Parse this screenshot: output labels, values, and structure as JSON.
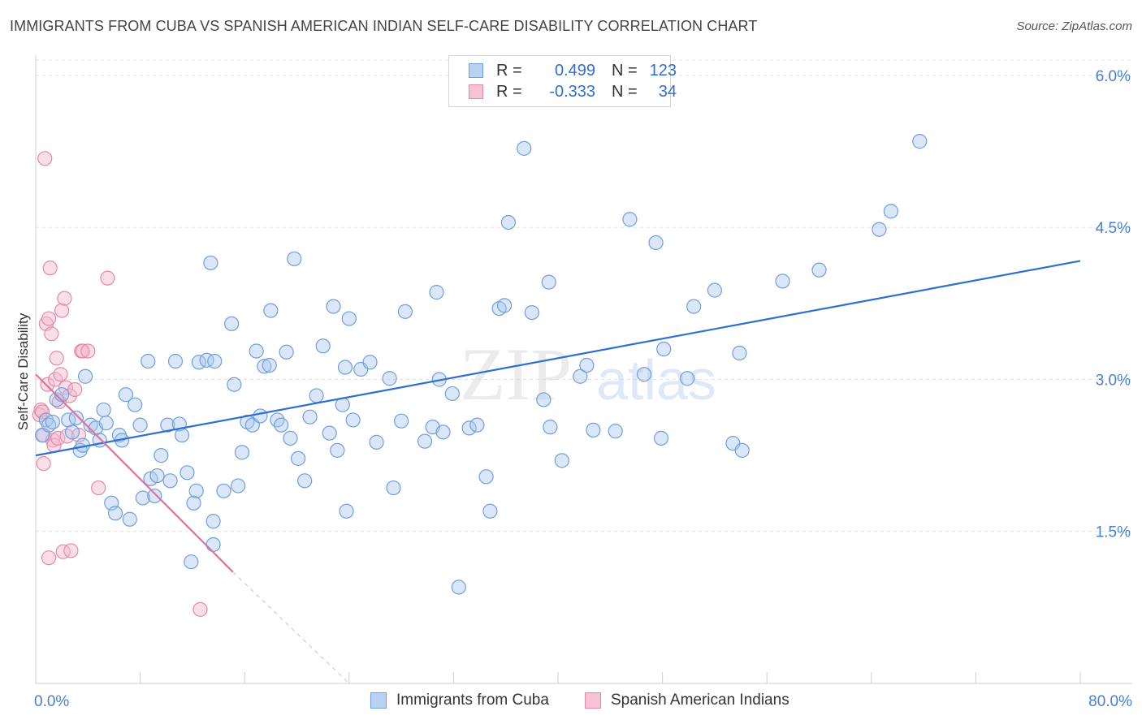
{
  "title": "IMMIGRANTS FROM CUBA VS SPANISH AMERICAN INDIAN SELF-CARE DISABILITY CORRELATION CHART",
  "source": "Source: ZipAtlas.com",
  "colors": {
    "blue": "#6f9fdc",
    "blue_fill": "#a9c6ee",
    "blue_line": "#2f6fd0",
    "pink": "#e48aa8",
    "pink_fill": "#f4b8cb",
    "pink_line": "#e0719a",
    "tick_text": "#4a7fd0"
  },
  "legend": {
    "rows": [
      {
        "r_label": "R =",
        "r_value": "0.499",
        "n_label": "N =",
        "n_value": "123"
      },
      {
        "r_label": "R =",
        "r_value": "-0.333",
        "n_label": "N =",
        "n_value": "34"
      }
    ]
  },
  "bottom_legend": [
    "Immigrants from Cuba",
    "Spanish American Indians"
  ],
  "watermark": {
    "zip": "ZIP",
    "atlas": "atlas"
  },
  "chart_data": {
    "type": "scatter",
    "ylabel": "Self-Care Disability",
    "xlim": [
      0,
      80
    ],
    "ylim": [
      0,
      6.2
    ],
    "x_ticks": [
      "0.0%",
      "80.0%"
    ],
    "y_ticks": [
      {
        "value": 1.5,
        "label": "1.5%"
      },
      {
        "value": 3.0,
        "label": "3.0%"
      },
      {
        "value": 4.5,
        "label": "4.5%"
      },
      {
        "value": 6.0,
        "label": "6.0%"
      }
    ],
    "series": [
      {
        "name": "Immigrants from Cuba",
        "trend": {
          "x0": 0,
          "y0": 2.25,
          "x1": 80,
          "y1": 4.17
        },
        "points": [
          [
            0.5,
            2.45
          ],
          [
            0.8,
            2.6
          ],
          [
            1.0,
            2.55
          ],
          [
            1.3,
            2.58
          ],
          [
            1.6,
            2.8
          ],
          [
            2.0,
            2.85
          ],
          [
            2.5,
            2.6
          ],
          [
            2.8,
            2.48
          ],
          [
            3.1,
            2.62
          ],
          [
            3.4,
            2.3
          ],
          [
            3.6,
            2.35
          ],
          [
            3.8,
            3.03
          ],
          [
            4.2,
            2.55
          ],
          [
            4.6,
            2.52
          ],
          [
            4.9,
            2.4
          ],
          [
            5.2,
            2.7
          ],
          [
            5.4,
            2.57
          ],
          [
            5.8,
            1.78
          ],
          [
            6.1,
            1.68
          ],
          [
            6.4,
            2.45
          ],
          [
            6.6,
            2.4
          ],
          [
            6.9,
            2.85
          ],
          [
            7.2,
            1.62
          ],
          [
            7.6,
            2.75
          ],
          [
            8.0,
            2.55
          ],
          [
            8.2,
            1.83
          ],
          [
            8.6,
            3.18
          ],
          [
            8.8,
            2.02
          ],
          [
            9.1,
            1.85
          ],
          [
            9.3,
            2.05
          ],
          [
            9.6,
            2.25
          ],
          [
            10.1,
            2.55
          ],
          [
            10.3,
            2.0
          ],
          [
            10.7,
            3.18
          ],
          [
            11.0,
            2.56
          ],
          [
            11.2,
            2.45
          ],
          [
            11.6,
            2.08
          ],
          [
            12.1,
            1.78
          ],
          [
            12.3,
            1.9
          ],
          [
            12.5,
            3.17
          ],
          [
            11.9,
            1.2
          ],
          [
            13.1,
            3.19
          ],
          [
            13.4,
            4.15
          ],
          [
            13.6,
            1.6
          ],
          [
            13.6,
            1.37
          ],
          [
            14.4,
            1.9
          ],
          [
            15.0,
            3.55
          ],
          [
            15.2,
            2.95
          ],
          [
            15.5,
            1.95
          ],
          [
            15.8,
            2.28
          ],
          [
            16.2,
            2.58
          ],
          [
            16.6,
            2.55
          ],
          [
            16.9,
            3.28
          ],
          [
            17.2,
            2.64
          ],
          [
            17.5,
            3.13
          ],
          [
            17.9,
            3.14
          ],
          [
            18.0,
            3.68
          ],
          [
            18.5,
            2.6
          ],
          [
            18.8,
            2.55
          ],
          [
            19.2,
            3.27
          ],
          [
            19.5,
            2.42
          ],
          [
            19.8,
            4.19
          ],
          [
            20.1,
            2.22
          ],
          [
            20.6,
            2.0
          ],
          [
            21.0,
            2.63
          ],
          [
            21.5,
            2.84
          ],
          [
            22.0,
            3.33
          ],
          [
            22.5,
            2.47
          ],
          [
            22.8,
            3.72
          ],
          [
            23.1,
            2.3
          ],
          [
            23.5,
            2.75
          ],
          [
            23.8,
            1.7
          ],
          [
            24.0,
            3.6
          ],
          [
            24.3,
            2.6
          ],
          [
            24.9,
            3.1
          ],
          [
            25.6,
            3.17
          ],
          [
            26.1,
            2.38
          ],
          [
            27.1,
            3.01
          ],
          [
            27.4,
            1.93
          ],
          [
            28.0,
            2.59
          ],
          [
            28.3,
            3.67
          ],
          [
            29.8,
            2.39
          ],
          [
            30.4,
            2.53
          ],
          [
            30.7,
            3.86
          ],
          [
            30.9,
            3.0
          ],
          [
            31.2,
            2.48
          ],
          [
            31.9,
            2.86
          ],
          [
            33.2,
            2.52
          ],
          [
            33.8,
            2.55
          ],
          [
            34.5,
            2.04
          ],
          [
            34.8,
            1.7
          ],
          [
            35.5,
            3.7
          ],
          [
            35.9,
            3.73
          ],
          [
            36.2,
            4.55
          ],
          [
            37.4,
            5.28
          ],
          [
            38.0,
            3.66
          ],
          [
            38.9,
            2.8
          ],
          [
            39.3,
            3.96
          ],
          [
            39.4,
            2.53
          ],
          [
            40.3,
            2.2
          ],
          [
            41.7,
            3.03
          ],
          [
            42.2,
            3.14
          ],
          [
            42.7,
            2.5
          ],
          [
            44.4,
            2.49
          ],
          [
            45.5,
            4.58
          ],
          [
            46.6,
            3.05
          ],
          [
            47.5,
            4.35
          ],
          [
            47.9,
            2.42
          ],
          [
            48.1,
            3.3
          ],
          [
            49.9,
            3.01
          ],
          [
            50.4,
            3.72
          ],
          [
            52.0,
            3.88
          ],
          [
            53.4,
            2.37
          ],
          [
            53.9,
            3.26
          ],
          [
            54.1,
            2.3
          ],
          [
            57.2,
            3.97
          ],
          [
            60.0,
            4.08
          ],
          [
            64.6,
            4.48
          ],
          [
            65.5,
            4.66
          ],
          [
            67.7,
            5.35
          ],
          [
            32.4,
            0.95
          ],
          [
            23.7,
            3.12
          ],
          [
            13.7,
            3.18
          ]
        ]
      },
      {
        "name": "Spanish American Indians",
        "trend": {
          "x0": 0,
          "y0": 3.05,
          "x1": 15.1,
          "y1": 1.1,
          "dash_x1": 24.0,
          "dash_y1": 0.0
        },
        "points": [
          [
            0.3,
            2.65
          ],
          [
            0.4,
            2.7
          ],
          [
            0.5,
            2.68
          ],
          [
            0.6,
            2.45
          ],
          [
            0.6,
            2.17
          ],
          [
            0.7,
            5.18
          ],
          [
            0.8,
            3.55
          ],
          [
            0.9,
            2.95
          ],
          [
            1.0,
            3.6
          ],
          [
            1.0,
            1.24
          ],
          [
            1.1,
            4.1
          ],
          [
            1.2,
            3.45
          ],
          [
            1.3,
            2.4
          ],
          [
            1.4,
            2.35
          ],
          [
            1.5,
            3.0
          ],
          [
            1.6,
            3.21
          ],
          [
            1.7,
            2.42
          ],
          [
            1.8,
            2.78
          ],
          [
            1.9,
            3.05
          ],
          [
            2.0,
            3.68
          ],
          [
            2.1,
            1.3
          ],
          [
            2.2,
            3.8
          ],
          [
            2.3,
            2.92
          ],
          [
            2.4,
            2.44
          ],
          [
            2.6,
            2.84
          ],
          [
            2.7,
            1.31
          ],
          [
            3.0,
            2.9
          ],
          [
            3.3,
            2.45
          ],
          [
            3.5,
            3.28
          ],
          [
            3.6,
            3.28
          ],
          [
            4.0,
            3.28
          ],
          [
            4.8,
            1.93
          ],
          [
            5.5,
            4.0
          ],
          [
            12.6,
            0.73
          ]
        ]
      }
    ]
  }
}
